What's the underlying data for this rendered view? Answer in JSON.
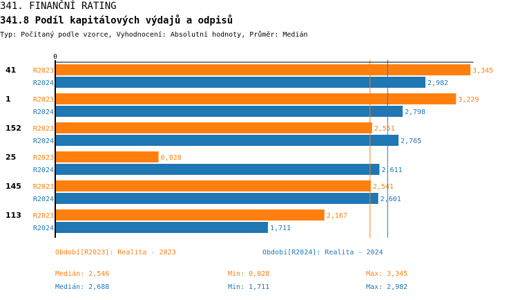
{
  "header": {
    "title": "341. FINANČNÍ RATING",
    "subtitle": "341.8 Podíl kapitálových výdajů a odpisů",
    "description": "Typ: Počítaný podle vzorce, Vyhodnocení: Absolutní hodnoty, Průměr: Medián"
  },
  "colors": {
    "r2023": "#ff7f0e",
    "r2024": "#1f77b4",
    "axis": "#000000"
  },
  "chart_data": {
    "type": "bar",
    "orientation": "horizontal",
    "x_tick_label": "0",
    "xlim": [
      0,
      3.37
    ],
    "categories": [
      "41",
      "1",
      "152",
      "25",
      "145",
      "113"
    ],
    "series": [
      {
        "name": "R2023",
        "color": "#ff7f0e",
        "values": [
          3.345,
          3.229,
          2.551,
          0.828,
          2.541,
          2.167
        ],
        "labels": [
          "3,345",
          "3,229",
          "2,551",
          "0,828",
          "2,541",
          "2,167"
        ],
        "median": 2.546
      },
      {
        "name": "R2024",
        "color": "#1f77b4",
        "values": [
          2.982,
          2.798,
          2.765,
          2.611,
          2.601,
          1.711
        ],
        "labels": [
          "2,982",
          "2,798",
          "2,765",
          "2,611",
          "2,601",
          "1,711"
        ],
        "median": 2.688
      }
    ]
  },
  "legend": {
    "r2023": {
      "period": "Období[R2023]: Realita - 2023",
      "median": "Medián: 2,546",
      "min": "Min: 0,828",
      "max": "Max: 3,345"
    },
    "r2024": {
      "period": "Období[R2024]: Realita - 2024",
      "median": "Medián: 2,688",
      "min": "Min: 1,711",
      "max": "Max: 2,982"
    }
  }
}
